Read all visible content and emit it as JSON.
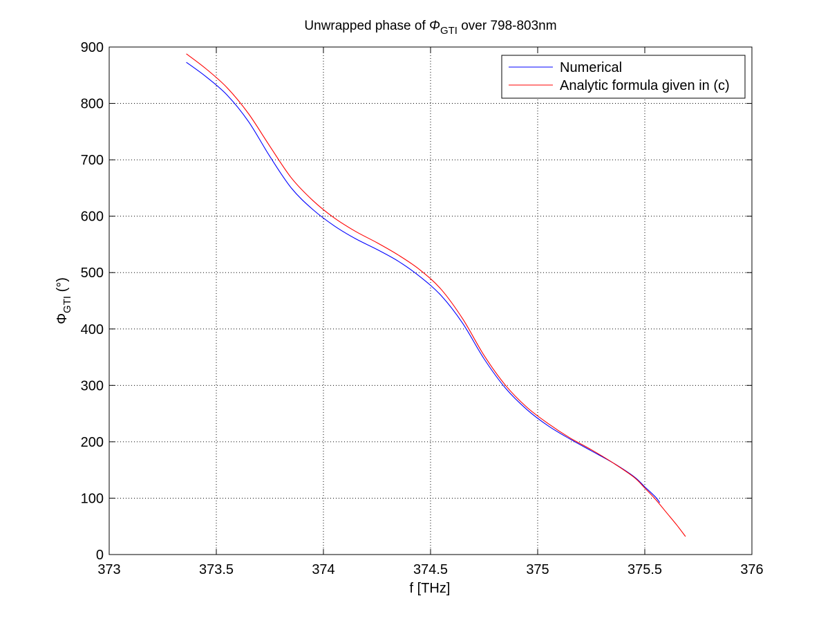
{
  "chart_data": {
    "type": "line",
    "title": {
      "main": "Unwrapped phase of ",
      "symbol": "Φ",
      "sub": "GTI",
      "rest": " over 798-803nm"
    },
    "xlabel": "f [THz]",
    "ylabel": {
      "symbol": "Φ",
      "sub": "GTI",
      "unit": " (°)"
    },
    "xlim": [
      373,
      376
    ],
    "ylim": [
      0,
      900
    ],
    "xticks": [
      373,
      373.5,
      374,
      374.5,
      375,
      375.5,
      376
    ],
    "xtick_labels": [
      "373",
      "373.5",
      "374",
      "374.5",
      "375",
      "375.5",
      "376"
    ],
    "yticks": [
      0,
      100,
      200,
      300,
      400,
      500,
      600,
      700,
      800,
      900
    ],
    "ytick_labels": [
      "0",
      "100",
      "200",
      "300",
      "400",
      "500",
      "600",
      "700",
      "800",
      "900"
    ],
    "grid": true,
    "legend_position": "top-right",
    "series": [
      {
        "name": "Numerical",
        "color": "#0000ff",
        "x": [
          373.36,
          373.45,
          373.55,
          373.65,
          373.75,
          373.85,
          373.95,
          374.05,
          374.15,
          374.25,
          374.35,
          374.45,
          374.55,
          374.65,
          374.75,
          374.85,
          374.95,
          375.05,
          375.15,
          375.25,
          375.35,
          375.45,
          375.5,
          375.55,
          375.57
        ],
        "y": [
          873,
          848,
          815,
          768,
          706,
          650,
          612,
          583,
          560,
          541,
          520,
          493,
          459,
          410,
          347,
          295,
          257,
          228,
          205,
          184,
          163,
          138,
          120,
          102,
          92
        ]
      },
      {
        "name": "Analytic formula given in (c)",
        "color": "#ff0000",
        "x": [
          373.36,
          373.45,
          373.55,
          373.65,
          373.75,
          373.85,
          373.95,
          374.05,
          374.15,
          374.25,
          374.35,
          374.45,
          374.55,
          374.65,
          374.75,
          374.85,
          374.95,
          375.05,
          375.15,
          375.25,
          375.35,
          375.45,
          375.5,
          375.55,
          375.6,
          375.65,
          375.69
        ],
        "y": [
          888,
          862,
          828,
          782,
          724,
          668,
          628,
          597,
          573,
          553,
          531,
          505,
          470,
          418,
          353,
          300,
          261,
          232,
          207,
          186,
          163,
          137,
          118,
          98,
          75,
          52,
          32
        ]
      }
    ]
  }
}
